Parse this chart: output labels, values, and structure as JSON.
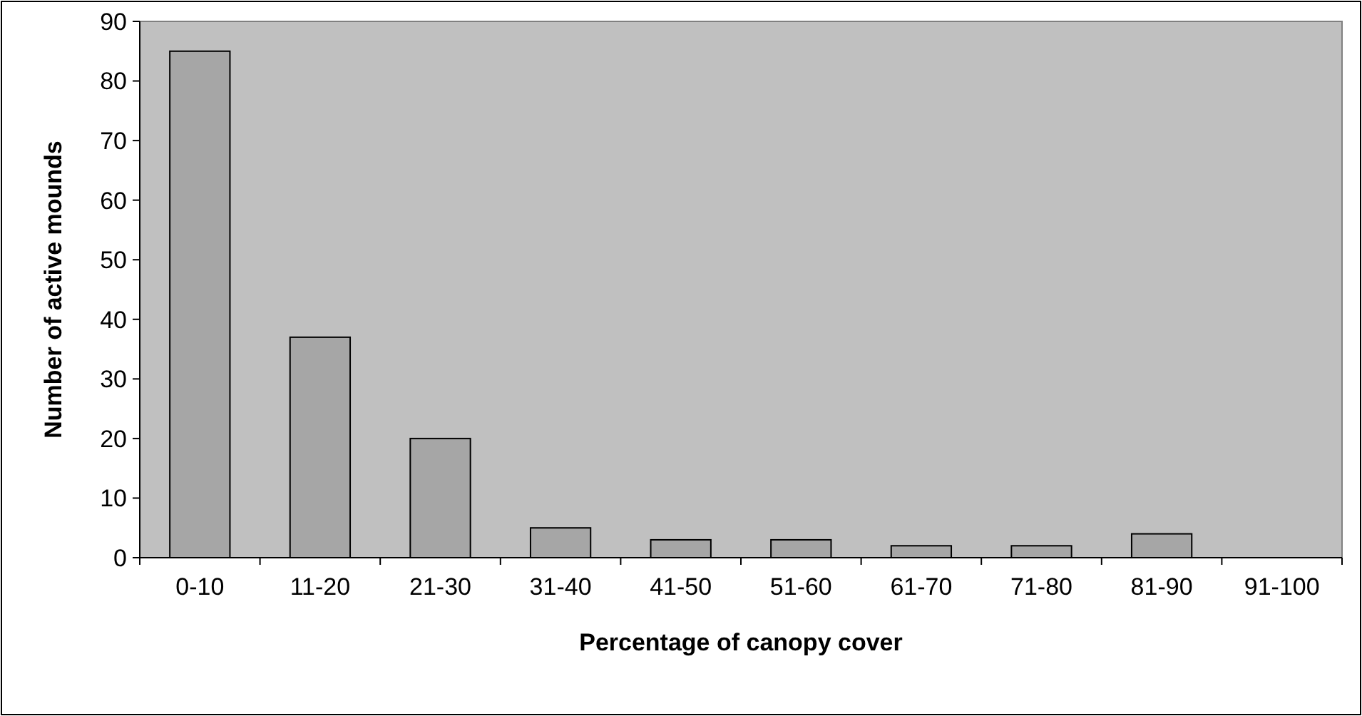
{
  "chart_data": {
    "type": "bar",
    "xlabel": "Percentage of canopy cover",
    "ylabel": "Number of active mounds",
    "categories": [
      "0-10",
      "11-20",
      "21-30",
      "31-40",
      "41-50",
      "51-60",
      "61-70",
      "71-80",
      "81-90",
      "91-100"
    ],
    "values": [
      85,
      37,
      20,
      5,
      3,
      3,
      2,
      2,
      4,
      0
    ],
    "color": "#a6a6a6",
    "ylim": [
      0,
      90
    ],
    "yticks": [
      0,
      10,
      20,
      30,
      40,
      50,
      60,
      70,
      80,
      90
    ],
    "grid": false
  }
}
